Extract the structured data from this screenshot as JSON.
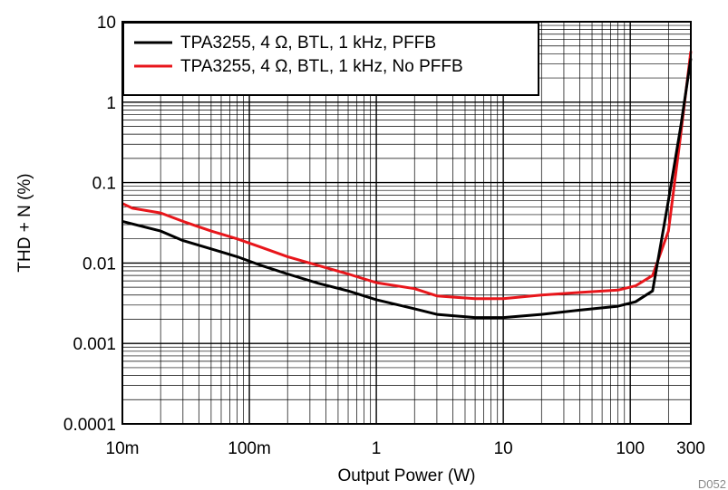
{
  "chart_data": {
    "type": "line",
    "xlabel": "Output Power (W)",
    "ylabel": "THD + N (%)",
    "figure_id": "D052",
    "x_scale": "log",
    "y_scale": "log",
    "xlim": [
      0.01,
      300
    ],
    "ylim": [
      0.0001,
      10
    ],
    "x_ticks": [
      {
        "value": 0.01,
        "label": "10m"
      },
      {
        "value": 0.1,
        "label": "100m"
      },
      {
        "value": 1,
        "label": "1"
      },
      {
        "value": 10,
        "label": "10"
      },
      {
        "value": 100,
        "label": "100"
      },
      {
        "value": 300,
        "label": "300"
      }
    ],
    "y_ticks": [
      {
        "value": 10,
        "label": "10"
      },
      {
        "value": 1,
        "label": "1"
      },
      {
        "value": 0.1,
        "label": "0.1"
      },
      {
        "value": 0.01,
        "label": "0.01"
      },
      {
        "value": 0.001,
        "label": "0.001"
      },
      {
        "value": 0.0001,
        "label": "0.0001"
      }
    ],
    "grid": true,
    "legend_position": "top-left",
    "series": [
      {
        "name": "TPA3255, 4 Ω, BTL, 1 kHz, PFFB",
        "color": "#000000",
        "x": [
          0.01,
          0.02,
          0.03,
          0.05,
          0.08,
          0.12,
          0.2,
          0.35,
          0.6,
          1,
          2,
          3,
          6,
          10,
          20,
          40,
          80,
          110,
          150,
          200,
          250,
          300
        ],
        "y": [
          0.033,
          0.025,
          0.019,
          0.015,
          0.012,
          0.0095,
          0.0073,
          0.0056,
          0.0045,
          0.0035,
          0.0027,
          0.0023,
          0.0021,
          0.0021,
          0.0023,
          0.0026,
          0.0029,
          0.0033,
          0.0045,
          0.06,
          0.5,
          3.5
        ]
      },
      {
        "name": "TPA3255, 4 Ω, BTL, 1 kHz, No PFFB",
        "color": "#e8161b",
        "x": [
          0.01,
          0.012,
          0.02,
          0.03,
          0.05,
          0.08,
          0.12,
          0.2,
          0.35,
          0.6,
          1,
          2,
          3,
          6,
          10,
          20,
          40,
          80,
          110,
          150,
          200,
          250,
          300
        ],
        "y": [
          0.055,
          0.048,
          0.042,
          0.033,
          0.025,
          0.02,
          0.016,
          0.012,
          0.0093,
          0.0073,
          0.0057,
          0.0048,
          0.0039,
          0.0036,
          0.0036,
          0.004,
          0.0043,
          0.0046,
          0.0052,
          0.007,
          0.025,
          0.4,
          4.3
        ]
      }
    ]
  }
}
